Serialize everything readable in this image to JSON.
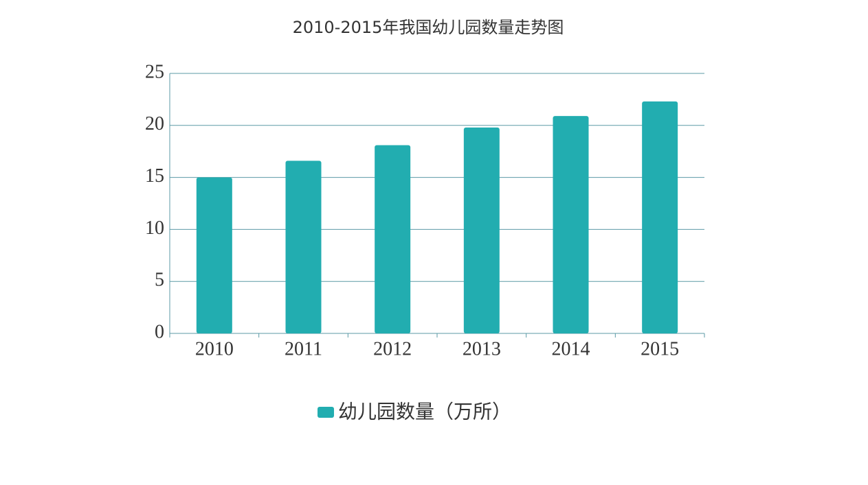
{
  "chart_data": {
    "type": "bar",
    "title": "2010-2015年我国幼儿园数量走势图",
    "categories": [
      "2010",
      "2011",
      "2012",
      "2013",
      "2014",
      "2015"
    ],
    "series": [
      {
        "name": "幼儿园数量（万所）",
        "color": "#22adb0",
        "values": [
          15.0,
          16.6,
          18.1,
          19.8,
          20.9,
          22.3
        ]
      }
    ],
    "ylim": [
      0,
      25
    ],
    "yticks": [
      0,
      5,
      10,
      15,
      20,
      25
    ],
    "grid": true,
    "legend": "bottom"
  }
}
